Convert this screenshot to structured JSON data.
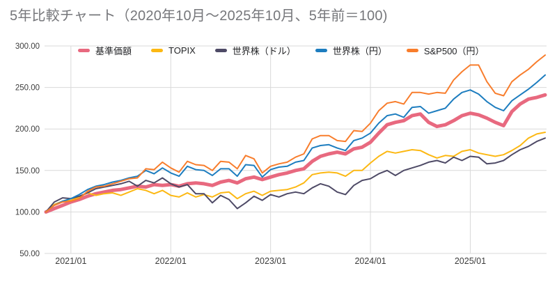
{
  "chart_data": {
    "type": "line",
    "title": "5年比較チャート（2020年10月～2025年10月、5年前＝100)",
    "subtitle_note": "5年前＝100",
    "x_start": "2020/10",
    "x_end": "2025/10",
    "x_frequency": "monthly",
    "x_tick_labels": [
      "2021/01",
      "2022/01",
      "2023/01",
      "2024/01",
      "2025/01"
    ],
    "x_tick_month_indices": [
      3,
      15,
      27,
      39,
      51
    ],
    "y_tick_labels": [
      "300.00",
      "250.00",
      "200.00",
      "150.00",
      "100.00",
      "50.00"
    ],
    "y_ticks": [
      300,
      250,
      200,
      150,
      100,
      50
    ],
    "ylim": [
      50,
      300
    ],
    "grid": true,
    "legend_position": "top",
    "series": [
      {
        "id": "fund-nav",
        "name": "基準価額",
        "color": "#e8697f",
        "line_width": 5,
        "values": [
          100,
          104,
          108,
          112,
          115,
          119,
          122,
          124,
          126,
          127,
          129,
          131,
          130,
          133,
          132,
          133,
          131,
          134,
          135,
          134,
          132,
          136,
          138,
          135,
          140,
          142,
          139,
          142,
          145,
          147,
          150,
          152,
          161,
          167,
          170,
          172,
          170,
          176,
          178,
          184,
          195,
          205,
          208,
          210,
          216,
          218,
          208,
          203,
          205,
          210,
          216,
          219,
          217,
          213,
          208,
          204,
          221,
          230,
          236,
          238,
          241
        ]
      },
      {
        "id": "topix",
        "name": "TOPIX",
        "color": "#fcb813",
        "line_width": 2,
        "values": [
          100,
          109,
          113,
          114,
          118,
          123,
          120,
          122,
          123,
          120,
          124,
          128,
          126,
          122,
          126,
          120,
          118,
          123,
          118,
          121,
          118,
          123,
          124,
          116,
          122,
          125,
          120,
          125,
          126,
          127,
          130,
          135,
          145,
          147,
          148,
          147,
          143,
          150,
          150,
          159,
          167,
          173,
          171,
          173,
          175,
          174,
          169,
          165,
          168,
          167,
          173,
          175,
          171,
          169,
          167,
          169,
          174,
          180,
          189,
          194,
          196
        ]
      },
      {
        "id": "world-stocks-usd",
        "name": "世界株（ドル）",
        "color": "#4e4a66",
        "line_width": 2,
        "values": [
          100,
          112,
          117,
          116,
          119,
          123,
          128,
          130,
          132,
          134,
          137,
          131,
          138,
          135,
          141,
          134,
          130,
          133,
          122,
          122,
          111,
          120,
          115,
          104,
          111,
          119,
          114,
          121,
          118,
          122,
          124,
          122,
          129,
          134,
          131,
          124,
          121,
          132,
          138,
          140,
          146,
          150,
          144,
          150,
          153,
          156,
          160,
          162,
          159,
          166,
          162,
          167,
          166,
          158,
          159,
          162,
          169,
          175,
          179,
          185,
          189
        ]
      },
      {
        "id": "world-stocks-jpy",
        "name": "世界株（円）",
        "color": "#1d7dbf",
        "line_width": 2,
        "values": [
          100,
          108,
          113,
          116,
          121,
          127,
          131,
          133,
          136,
          138,
          141,
          143,
          150,
          146,
          153,
          147,
          143,
          155,
          151,
          150,
          144,
          152,
          152,
          143,
          157,
          156,
          142,
          151,
          154,
          155,
          160,
          162,
          177,
          180,
          181,
          177,
          174,
          186,
          189,
          195,
          207,
          216,
          218,
          214,
          226,
          227,
          219,
          222,
          225,
          236,
          244,
          247,
          242,
          233,
          226,
          222,
          234,
          241,
          248,
          256,
          265
        ]
      },
      {
        "id": "sp500-jpy",
        "name": "S&P500（円）",
        "color": "#f87d2c",
        "line_width": 2,
        "values": [
          100,
          108,
          112,
          113,
          116,
          125,
          130,
          131,
          134,
          137,
          140,
          141,
          152,
          151,
          160,
          153,
          148,
          161,
          157,
          156,
          150,
          161,
          160,
          152,
          168,
          164,
          147,
          155,
          158,
          160,
          166,
          170,
          188,
          192,
          192,
          186,
          185,
          198,
          197,
          207,
          222,
          231,
          233,
          230,
          244,
          244,
          242,
          244,
          243,
          259,
          269,
          277,
          277,
          257,
          243,
          240,
          257,
          265,
          272,
          281,
          289
        ]
      }
    ]
  },
  "colors": {
    "background": "#ffffff",
    "gridline": "#d9d9d9",
    "title_text": "#76777b",
    "axis_text": "#3c3c3c",
    "legend_text": "#222326"
  }
}
